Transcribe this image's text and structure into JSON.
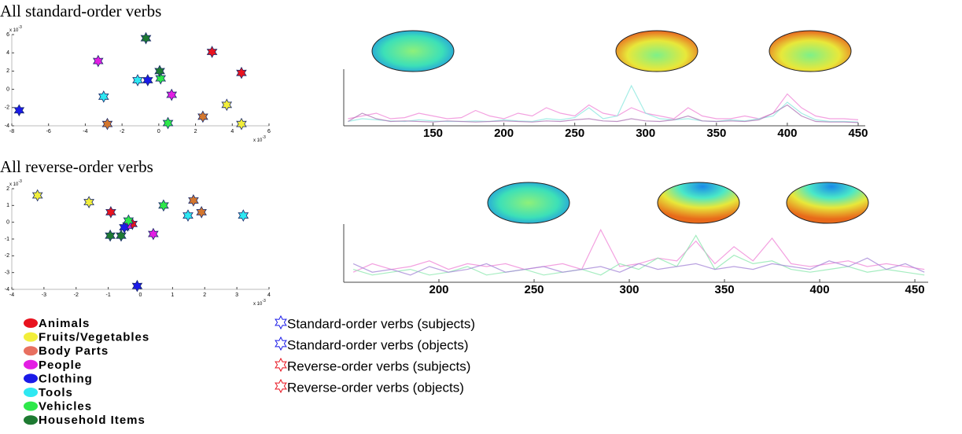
{
  "chart_data": [
    {
      "type": "scatter",
      "title": "All standard-order verbs",
      "axis_multiplier": "x 10",
      "axis_multiplier_exp": "-3",
      "xlim": [
        -8,
        6
      ],
      "xticks": [
        -8,
        -6,
        -4,
        -2,
        0,
        2,
        4,
        6
      ],
      "ylim": [
        -4,
        6
      ],
      "yticks": [
        -4,
        -2,
        0,
        2,
        4,
        6
      ],
      "series": [
        {
          "color": "#e8131f",
          "x": [
            2.9,
            4.5
          ],
          "y": [
            4.1,
            1.8
          ]
        },
        {
          "color": "#f2ee3a",
          "x": [
            3.7,
            4.5
          ],
          "y": [
            -1.7,
            -3.8
          ]
        },
        {
          "color": "#d4772e",
          "x": [
            -2.8,
            2.4
          ],
          "y": [
            -3.8,
            -3.0
          ]
        },
        {
          "color": "#e31ee3",
          "x": [
            -3.3,
            0.7
          ],
          "y": [
            3.1,
            -0.6
          ]
        },
        {
          "color": "#1a1ae8",
          "x": [
            -7.6,
            -0.6
          ],
          "y": [
            -2.3,
            1.0
          ]
        },
        {
          "color": "#2ee8f2",
          "x": [
            -3.0,
            -1.15
          ],
          "y": [
            -0.8,
            1.0
          ]
        },
        {
          "color": "#2ee84a",
          "x": [
            0.1,
            0.5
          ],
          "y": [
            1.2,
            -3.7
          ]
        },
        {
          "color": "#1e7a32",
          "x": [
            -0.7,
            0.05
          ],
          "y": [
            5.6,
            2.0
          ]
        }
      ]
    },
    {
      "type": "scatter",
      "title": "All reverse-order verbs",
      "axis_multiplier": "x 10",
      "axis_multiplier_exp": "-3",
      "xlim": [
        -4,
        4
      ],
      "xticks": [
        -4,
        -3,
        -2,
        -1,
        0,
        1,
        2,
        3,
        4
      ],
      "ylim": [
        -4,
        2
      ],
      "yticks": [
        -4,
        -3,
        -2,
        -1,
        0,
        1,
        2
      ],
      "series": [
        {
          "color": "#e8131f",
          "x": [
            -0.92,
            -0.25
          ],
          "y": [
            0.6,
            -0.1
          ]
        },
        {
          "color": "#f2ee3a",
          "x": [
            -3.2,
            -1.6
          ],
          "y": [
            1.6,
            1.2
          ]
        },
        {
          "color": "#d4772e",
          "x": [
            1.65,
            1.9
          ],
          "y": [
            1.3,
            0.6
          ]
        },
        {
          "color": "#e31ee3",
          "x": [
            -0.4,
            0.4
          ],
          "y": [
            -0.2,
            -0.7
          ]
        },
        {
          "color": "#1a1ae8",
          "x": [
            -0.5,
            -0.1
          ],
          "y": [
            -0.3,
            -3.8
          ]
        },
        {
          "color": "#2ee8f2",
          "x": [
            1.48,
            3.2
          ],
          "y": [
            0.4,
            0.4
          ]
        },
        {
          "color": "#2ee84a",
          "x": [
            -0.37,
            0.72
          ],
          "y": [
            0.1,
            1.0
          ]
        },
        {
          "color": "#1e7a32",
          "x": [
            -0.94,
            -0.6
          ],
          "y": [
            -0.8,
            -0.8
          ]
        }
      ]
    },
    {
      "type": "line",
      "xlim": [
        87,
        455
      ],
      "xticks": [
        150,
        200,
        250,
        300,
        350,
        400,
        450
      ],
      "ylim": [
        0,
        1
      ],
      "x": [
        90,
        100,
        110,
        120,
        130,
        140,
        150,
        160,
        170,
        180,
        190,
        200,
        210,
        220,
        230,
        240,
        250,
        260,
        270,
        280,
        290,
        300,
        310,
        320,
        330,
        340,
        350,
        360,
        370,
        380,
        390,
        400,
        410,
        420,
        430,
        440,
        450
      ],
      "series": [
        {
          "color": "#f08ad8",
          "values": [
            0.1,
            0.15,
            0.2,
            0.1,
            0.12,
            0.2,
            0.15,
            0.1,
            0.12,
            0.25,
            0.15,
            0.1,
            0.2,
            0.15,
            0.3,
            0.2,
            0.15,
            0.35,
            0.2,
            0.15,
            0.3,
            0.2,
            0.15,
            0.1,
            0.3,
            0.15,
            0.1,
            0.1,
            0.15,
            0.1,
            0.2,
            0.55,
            0.3,
            0.15,
            0.1,
            0.1,
            0.08
          ]
        },
        {
          "color": "#8ee8e0",
          "values": [
            0.05,
            0.1,
            0.08,
            0.06,
            0.05,
            0.08,
            0.06,
            0.05,
            0.05,
            0.06,
            0.05,
            0.08,
            0.06,
            0.05,
            0.1,
            0.08,
            0.12,
            0.3,
            0.1,
            0.15,
            0.7,
            0.2,
            0.1,
            0.08,
            0.1,
            0.06,
            0.05,
            0.08,
            0.06,
            0.1,
            0.15,
            0.4,
            0.2,
            0.08,
            0.05,
            0.05,
            0.04
          ]
        },
        {
          "color": "#b07ab8",
          "values": [
            0.05,
            0.2,
            0.1,
            0.05,
            0.06,
            0.05,
            0.04,
            0.06,
            0.05,
            0.04,
            0.05,
            0.06,
            0.05,
            0.04,
            0.06,
            0.05,
            0.08,
            0.1,
            0.06,
            0.05,
            0.1,
            0.06,
            0.05,
            0.08,
            0.15,
            0.06,
            0.05,
            0.06,
            0.05,
            0.08,
            0.2,
            0.35,
            0.15,
            0.05,
            0.04,
            0.04,
            0.03
          ]
        }
      ]
    },
    {
      "type": "line",
      "xlim": [
        150,
        457
      ],
      "xticks": [
        200,
        250,
        300,
        350,
        400,
        450
      ],
      "ylim": [
        0,
        1
      ],
      "x": [
        155,
        165,
        175,
        185,
        195,
        205,
        215,
        225,
        235,
        245,
        255,
        265,
        275,
        285,
        295,
        305,
        315,
        325,
        335,
        345,
        355,
        365,
        375,
        385,
        395,
        405,
        415,
        425,
        435,
        445,
        455
      ],
      "series": [
        {
          "color": "#f08ad8",
          "values": [
            0.15,
            0.3,
            0.2,
            0.25,
            0.35,
            0.2,
            0.3,
            0.25,
            0.3,
            0.2,
            0.25,
            0.3,
            0.2,
            0.9,
            0.25,
            0.3,
            0.4,
            0.35,
            0.7,
            0.3,
            0.6,
            0.35,
            0.75,
            0.3,
            0.25,
            0.3,
            0.35,
            0.25,
            0.3,
            0.25,
            0.2
          ]
        },
        {
          "color": "#8ee8b0",
          "values": [
            0.2,
            0.1,
            0.15,
            0.2,
            0.1,
            0.15,
            0.25,
            0.1,
            0.15,
            0.2,
            0.1,
            0.15,
            0.2,
            0.1,
            0.3,
            0.2,
            0.4,
            0.25,
            0.8,
            0.2,
            0.45,
            0.3,
            0.35,
            0.2,
            0.15,
            0.2,
            0.25,
            0.15,
            0.2,
            0.15,
            0.1
          ]
        },
        {
          "color": "#a88ad8",
          "values": [
            0.3,
            0.15,
            0.2,
            0.1,
            0.25,
            0.15,
            0.2,
            0.3,
            0.15,
            0.2,
            0.25,
            0.15,
            0.2,
            0.25,
            0.15,
            0.3,
            0.2,
            0.25,
            0.3,
            0.2,
            0.25,
            0.2,
            0.3,
            0.25,
            0.2,
            0.35,
            0.25,
            0.4,
            0.2,
            0.3,
            0.15
          ]
        }
      ]
    }
  ],
  "legend": {
    "categories": [
      {
        "name": "Animals",
        "color": "#e8131f"
      },
      {
        "name": "Fruits/Vegetables",
        "color": "#f2ee3a"
      },
      {
        "name": "Body Parts",
        "color": "#e87060"
      },
      {
        "name": "People",
        "color": "#e31ee3"
      },
      {
        "name": "Clothing",
        "color": "#1a1ae8"
      },
      {
        "name": "Tools",
        "color": "#2ee8f2"
      },
      {
        "name": "Vehicles",
        "color": "#2ee84a"
      },
      {
        "name": "Household Items",
        "color": "#1e7a32"
      }
    ],
    "markers": [
      {
        "label": "Standard-order verbs (subjects)",
        "color": "#1a1ae8"
      },
      {
        "label": "Standard-order verbs (objects)",
        "color": "#1a1ae8"
      },
      {
        "label": "Reverse-order verbs (subjects)",
        "color": "#e8131f"
      },
      {
        "label": "Reverse-order verbs (objects)",
        "color": "#e8131f"
      }
    ]
  }
}
